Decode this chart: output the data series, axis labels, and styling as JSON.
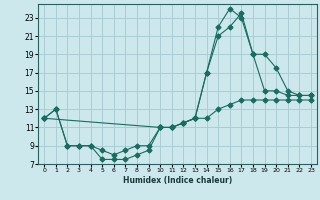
{
  "xlabel": "Humidex (Indice chaleur)",
  "background_color": "#cce8ec",
  "grid_color": "#aacdd4",
  "line_color": "#1a6b60",
  "xlim": [
    -0.5,
    23.5
  ],
  "ylim": [
    7,
    24.5
  ],
  "xticks": [
    0,
    1,
    2,
    3,
    4,
    5,
    6,
    7,
    8,
    9,
    10,
    11,
    12,
    13,
    14,
    15,
    16,
    17,
    18,
    19,
    20,
    21,
    22,
    23
  ],
  "yticks": [
    7,
    9,
    11,
    13,
    15,
    17,
    19,
    21,
    23
  ],
  "line1_x": [
    0,
    1,
    2,
    3,
    4,
    5,
    6,
    7,
    8,
    9,
    10,
    11,
    12,
    13,
    14,
    15,
    16,
    17,
    18,
    19,
    20,
    21,
    22,
    23
  ],
  "line1_y": [
    12,
    13,
    9,
    9,
    9,
    8.5,
    8,
    8.5,
    9,
    9,
    11,
    11,
    11.5,
    12,
    12,
    13,
    13.5,
    14,
    14,
    14,
    14,
    14,
    14,
    14
  ],
  "line2_x": [
    0,
    1,
    2,
    3,
    4,
    5,
    6,
    7,
    8,
    9,
    10,
    11,
    12,
    13,
    14,
    15,
    16,
    17,
    18,
    19,
    20,
    21,
    22,
    23
  ],
  "line2_y": [
    12,
    13,
    9,
    9,
    9,
    7.5,
    7.5,
    7.5,
    8,
    8.5,
    11,
    11,
    11.5,
    12,
    17,
    22,
    24,
    23,
    19,
    15,
    15,
    14.5,
    14.5,
    14.5
  ],
  "line3_x": [
    0,
    10,
    11,
    12,
    13,
    14,
    15,
    16,
    17,
    18,
    19,
    20,
    21,
    22,
    23
  ],
  "line3_y": [
    12,
    11,
    11,
    11.5,
    12,
    17,
    21,
    22,
    23.5,
    19,
    19,
    17.5,
    15,
    14.5,
    14.5
  ]
}
